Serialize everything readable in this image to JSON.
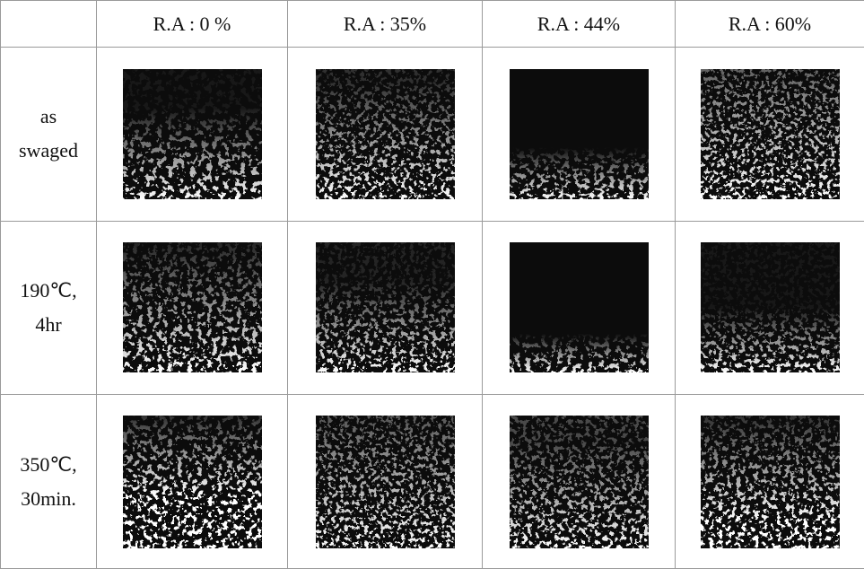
{
  "table": {
    "columns": [
      "R.A : 0 %",
      "R.A : 35%",
      "R.A : 44%",
      "R.A : 60%"
    ],
    "rows": [
      {
        "label": [
          "as",
          "swaged"
        ]
      },
      {
        "label": [
          "190℃,",
          "4hr"
        ]
      },
      {
        "label": [
          "350℃,",
          "30min."
        ]
      }
    ]
  }
}
